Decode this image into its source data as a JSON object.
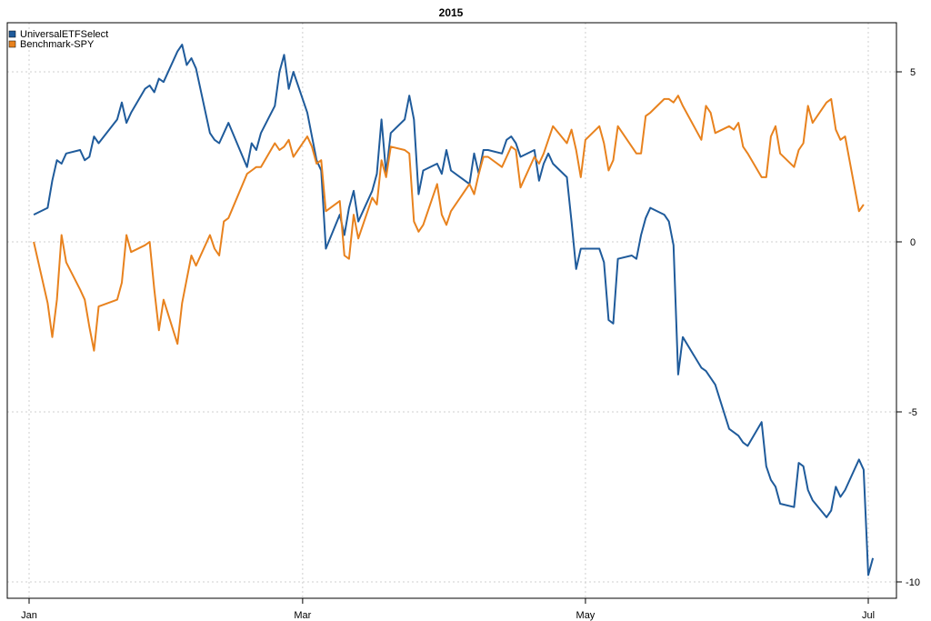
{
  "chart_data": {
    "type": "line",
    "title": "2015",
    "xlabel": "",
    "ylabel": "",
    "x_range": [
      "2015-01-01",
      "2015-07-01"
    ],
    "ylim": [
      -10.5,
      6.5
    ],
    "x_ticks": [
      {
        "date": "2015-01-01",
        "label": "Jan"
      },
      {
        "date": "2015-03-01",
        "label": "Mar"
      },
      {
        "date": "2015-05-01",
        "label": "May"
      },
      {
        "date": "2015-07-01",
        "label": "Jul"
      }
    ],
    "y_ticks": [
      5,
      0,
      -5,
      -10
    ],
    "y_axis_side": "right",
    "grid": true,
    "legend_position": "top-left",
    "series": [
      {
        "name": "UniversalETFSelect",
        "color": "#1f5b9b",
        "points": [
          [
            "2015-01-02",
            0.8
          ],
          [
            "2015-01-05",
            1.0
          ],
          [
            "2015-01-06",
            1.8
          ],
          [
            "2015-01-07",
            2.4
          ],
          [
            "2015-01-08",
            2.3
          ],
          [
            "2015-01-09",
            2.6
          ],
          [
            "2015-01-12",
            2.7
          ],
          [
            "2015-01-13",
            2.4
          ],
          [
            "2015-01-14",
            2.5
          ],
          [
            "2015-01-15",
            3.1
          ],
          [
            "2015-01-16",
            2.9
          ],
          [
            "2015-01-20",
            3.6
          ],
          [
            "2015-01-21",
            4.1
          ],
          [
            "2015-01-22",
            3.5
          ],
          [
            "2015-01-23",
            3.8
          ],
          [
            "2015-01-26",
            4.5
          ],
          [
            "2015-01-27",
            4.6
          ],
          [
            "2015-01-28",
            4.4
          ],
          [
            "2015-01-29",
            4.8
          ],
          [
            "2015-01-30",
            4.7
          ],
          [
            "2015-02-02",
            5.6
          ],
          [
            "2015-02-03",
            5.8
          ],
          [
            "2015-02-04",
            5.2
          ],
          [
            "2015-02-05",
            5.4
          ],
          [
            "2015-02-06",
            5.1
          ],
          [
            "2015-02-09",
            3.2
          ],
          [
            "2015-02-10",
            3.0
          ],
          [
            "2015-02-11",
            2.9
          ],
          [
            "2015-02-12",
            3.2
          ],
          [
            "2015-02-13",
            3.5
          ],
          [
            "2015-02-17",
            2.2
          ],
          [
            "2015-02-18",
            2.9
          ],
          [
            "2015-02-19",
            2.7
          ],
          [
            "2015-02-20",
            3.2
          ],
          [
            "2015-02-23",
            4.0
          ],
          [
            "2015-02-24",
            5.0
          ],
          [
            "2015-02-25",
            5.5
          ],
          [
            "2015-02-26",
            4.5
          ],
          [
            "2015-02-27",
            5.0
          ],
          [
            "2015-03-02",
            3.8
          ],
          [
            "2015-03-03",
            3.1
          ],
          [
            "2015-03-04",
            2.4
          ],
          [
            "2015-03-05",
            2.1
          ],
          [
            "2015-03-06",
            -0.2
          ],
          [
            "2015-03-09",
            0.8
          ],
          [
            "2015-03-10",
            0.2
          ],
          [
            "2015-03-11",
            1.0
          ],
          [
            "2015-03-12",
            1.5
          ],
          [
            "2015-03-13",
            0.6
          ],
          [
            "2015-03-16",
            1.5
          ],
          [
            "2015-03-17",
            2.0
          ],
          [
            "2015-03-18",
            3.6
          ],
          [
            "2015-03-19",
            2.0
          ],
          [
            "2015-03-20",
            3.2
          ],
          [
            "2015-03-23",
            3.6
          ],
          [
            "2015-03-24",
            4.3
          ],
          [
            "2015-03-25",
            3.6
          ],
          [
            "2015-03-26",
            1.4
          ],
          [
            "2015-03-27",
            2.1
          ],
          [
            "2015-03-30",
            2.3
          ],
          [
            "2015-03-31",
            2.0
          ],
          [
            "2015-04-01",
            2.7
          ],
          [
            "2015-04-02",
            2.1
          ],
          [
            "2015-04-06",
            1.7
          ],
          [
            "2015-04-07",
            2.6
          ],
          [
            "2015-04-08",
            2.0
          ],
          [
            "2015-04-09",
            2.7
          ],
          [
            "2015-04-10",
            2.7
          ],
          [
            "2015-04-13",
            2.6
          ],
          [
            "2015-04-14",
            3.0
          ],
          [
            "2015-04-15",
            3.1
          ],
          [
            "2015-04-16",
            2.9
          ],
          [
            "2015-04-17",
            2.5
          ],
          [
            "2015-04-20",
            2.7
          ],
          [
            "2015-04-21",
            1.8
          ],
          [
            "2015-04-22",
            2.3
          ],
          [
            "2015-04-23",
            2.6
          ],
          [
            "2015-04-24",
            2.3
          ],
          [
            "2015-04-27",
            1.9
          ],
          [
            "2015-04-28",
            0.6
          ],
          [
            "2015-04-29",
            -0.8
          ],
          [
            "2015-04-30",
            -0.2
          ],
          [
            "2015-05-01",
            -0.2
          ],
          [
            "2015-05-04",
            -0.2
          ],
          [
            "2015-05-05",
            -0.6
          ],
          [
            "2015-05-06",
            -2.3
          ],
          [
            "2015-05-07",
            -2.4
          ],
          [
            "2015-05-08",
            -0.5
          ],
          [
            "2015-05-11",
            -0.4
          ],
          [
            "2015-05-12",
            -0.5
          ],
          [
            "2015-05-13",
            0.2
          ],
          [
            "2015-05-14",
            0.7
          ],
          [
            "2015-05-15",
            1.0
          ],
          [
            "2015-05-18",
            0.8
          ],
          [
            "2015-05-19",
            0.6
          ],
          [
            "2015-05-20",
            -0.1
          ],
          [
            "2015-05-21",
            -3.9
          ],
          [
            "2015-05-22",
            -2.8
          ],
          [
            "2015-05-26",
            -3.7
          ],
          [
            "2015-05-27",
            -3.8
          ],
          [
            "2015-05-28",
            -4.0
          ],
          [
            "2015-05-29",
            -4.2
          ],
          [
            "2015-06-01",
            -5.5
          ],
          [
            "2015-06-02",
            -5.6
          ],
          [
            "2015-06-03",
            -5.7
          ],
          [
            "2015-06-04",
            -5.9
          ],
          [
            "2015-06-05",
            -6.0
          ],
          [
            "2015-06-08",
            -5.3
          ],
          [
            "2015-06-09",
            -6.6
          ],
          [
            "2015-06-10",
            -7.0
          ],
          [
            "2015-06-11",
            -7.2
          ],
          [
            "2015-06-12",
            -7.7
          ],
          [
            "2015-06-15",
            -7.8
          ],
          [
            "2015-06-16",
            -6.5
          ],
          [
            "2015-06-17",
            -6.6
          ],
          [
            "2015-06-18",
            -7.3
          ],
          [
            "2015-06-19",
            -7.6
          ],
          [
            "2015-06-22",
            -8.1
          ],
          [
            "2015-06-23",
            -7.9
          ],
          [
            "2015-06-24",
            -7.2
          ],
          [
            "2015-06-25",
            -7.5
          ],
          [
            "2015-06-26",
            -7.3
          ],
          [
            "2015-06-29",
            -6.4
          ],
          [
            "2015-06-30",
            -6.7
          ],
          [
            "2015-07-01",
            -9.8
          ],
          [
            "2015-07-02",
            -9.3
          ]
        ]
      },
      {
        "name": "Benchmark-SPY",
        "color": "#e8821e",
        "points": [
          [
            "2015-01-02",
            0.0
          ],
          [
            "2015-01-05",
            -1.8
          ],
          [
            "2015-01-06",
            -2.8
          ],
          [
            "2015-01-07",
            -1.7
          ],
          [
            "2015-01-08",
            0.2
          ],
          [
            "2015-01-09",
            -0.6
          ],
          [
            "2015-01-12",
            -1.4
          ],
          [
            "2015-01-13",
            -1.7
          ],
          [
            "2015-01-14",
            -2.5
          ],
          [
            "2015-01-15",
            -3.2
          ],
          [
            "2015-01-16",
            -1.9
          ],
          [
            "2015-01-20",
            -1.7
          ],
          [
            "2015-01-21",
            -1.2
          ],
          [
            "2015-01-22",
            0.2
          ],
          [
            "2015-01-23",
            -0.3
          ],
          [
            "2015-01-26",
            -0.1
          ],
          [
            "2015-01-27",
            0.0
          ],
          [
            "2015-01-28",
            -1.4
          ],
          [
            "2015-01-29",
            -2.6
          ],
          [
            "2015-01-30",
            -1.7
          ],
          [
            "2015-02-02",
            -3.0
          ],
          [
            "2015-02-03",
            -1.8
          ],
          [
            "2015-02-04",
            -1.1
          ],
          [
            "2015-02-05",
            -0.4
          ],
          [
            "2015-02-06",
            -0.7
          ],
          [
            "2015-02-09",
            0.2
          ],
          [
            "2015-02-10",
            -0.2
          ],
          [
            "2015-02-11",
            -0.4
          ],
          [
            "2015-02-12",
            0.6
          ],
          [
            "2015-02-13",
            0.7
          ],
          [
            "2015-02-17",
            2.0
          ],
          [
            "2015-02-18",
            2.1
          ],
          [
            "2015-02-19",
            2.2
          ],
          [
            "2015-02-20",
            2.2
          ],
          [
            "2015-02-23",
            2.9
          ],
          [
            "2015-02-24",
            2.7
          ],
          [
            "2015-02-25",
            2.8
          ],
          [
            "2015-02-26",
            3.0
          ],
          [
            "2015-02-27",
            2.5
          ],
          [
            "2015-03-02",
            3.1
          ],
          [
            "2015-03-03",
            2.8
          ],
          [
            "2015-03-04",
            2.3
          ],
          [
            "2015-03-05",
            2.4
          ],
          [
            "2015-03-06",
            0.9
          ],
          [
            "2015-03-09",
            1.2
          ],
          [
            "2015-03-10",
            -0.4
          ],
          [
            "2015-03-11",
            -0.5
          ],
          [
            "2015-03-12",
            0.8
          ],
          [
            "2015-03-13",
            0.1
          ],
          [
            "2015-03-16",
            1.3
          ],
          [
            "2015-03-17",
            1.1
          ],
          [
            "2015-03-18",
            2.4
          ],
          [
            "2015-03-19",
            1.9
          ],
          [
            "2015-03-20",
            2.8
          ],
          [
            "2015-03-23",
            2.7
          ],
          [
            "2015-03-24",
            2.6
          ],
          [
            "2015-03-25",
            0.6
          ],
          [
            "2015-03-26",
            0.3
          ],
          [
            "2015-03-27",
            0.5
          ],
          [
            "2015-03-30",
            1.7
          ],
          [
            "2015-03-31",
            0.8
          ],
          [
            "2015-04-01",
            0.5
          ],
          [
            "2015-04-02",
            0.9
          ],
          [
            "2015-04-06",
            1.7
          ],
          [
            "2015-04-07",
            1.4
          ],
          [
            "2015-04-08",
            2.0
          ],
          [
            "2015-04-09",
            2.5
          ],
          [
            "2015-04-10",
            2.5
          ],
          [
            "2015-04-13",
            2.2
          ],
          [
            "2015-04-14",
            2.5
          ],
          [
            "2015-04-15",
            2.8
          ],
          [
            "2015-04-16",
            2.7
          ],
          [
            "2015-04-17",
            1.6
          ],
          [
            "2015-04-20",
            2.5
          ],
          [
            "2015-04-21",
            2.3
          ],
          [
            "2015-04-22",
            2.6
          ],
          [
            "2015-04-23",
            3.0
          ],
          [
            "2015-04-24",
            3.4
          ],
          [
            "2015-04-27",
            2.9
          ],
          [
            "2015-04-28",
            3.3
          ],
          [
            "2015-04-29",
            2.7
          ],
          [
            "2015-04-30",
            1.9
          ],
          [
            "2015-05-01",
            3.0
          ],
          [
            "2015-05-04",
            3.4
          ],
          [
            "2015-05-05",
            2.9
          ],
          [
            "2015-05-06",
            2.1
          ],
          [
            "2015-05-07",
            2.4
          ],
          [
            "2015-05-08",
            3.4
          ],
          [
            "2015-05-11",
            2.8
          ],
          [
            "2015-05-12",
            2.6
          ],
          [
            "2015-05-13",
            2.6
          ],
          [
            "2015-05-14",
            3.7
          ],
          [
            "2015-05-15",
            3.8
          ],
          [
            "2015-05-18",
            4.2
          ],
          [
            "2015-05-19",
            4.2
          ],
          [
            "2015-05-20",
            4.1
          ],
          [
            "2015-05-21",
            4.3
          ],
          [
            "2015-05-22",
            4.0
          ],
          [
            "2015-05-26",
            3.0
          ],
          [
            "2015-05-27",
            4.0
          ],
          [
            "2015-05-28",
            3.8
          ],
          [
            "2015-05-29",
            3.2
          ],
          [
            "2015-06-01",
            3.4
          ],
          [
            "2015-06-02",
            3.3
          ],
          [
            "2015-06-03",
            3.5
          ],
          [
            "2015-06-04",
            2.8
          ],
          [
            "2015-06-05",
            2.6
          ],
          [
            "2015-06-08",
            1.9
          ],
          [
            "2015-06-09",
            1.9
          ],
          [
            "2015-06-10",
            3.1
          ],
          [
            "2015-06-11",
            3.4
          ],
          [
            "2015-06-12",
            2.6
          ],
          [
            "2015-06-15",
            2.2
          ],
          [
            "2015-06-16",
            2.7
          ],
          [
            "2015-06-17",
            2.9
          ],
          [
            "2015-06-18",
            4.0
          ],
          [
            "2015-06-19",
            3.5
          ],
          [
            "2015-06-22",
            4.1
          ],
          [
            "2015-06-23",
            4.2
          ],
          [
            "2015-06-24",
            3.3
          ],
          [
            "2015-06-25",
            3.0
          ],
          [
            "2015-06-26",
            3.1
          ],
          [
            "2015-06-29",
            0.9
          ],
          [
            "2015-06-30",
            1.1
          ]
        ]
      }
    ]
  }
}
